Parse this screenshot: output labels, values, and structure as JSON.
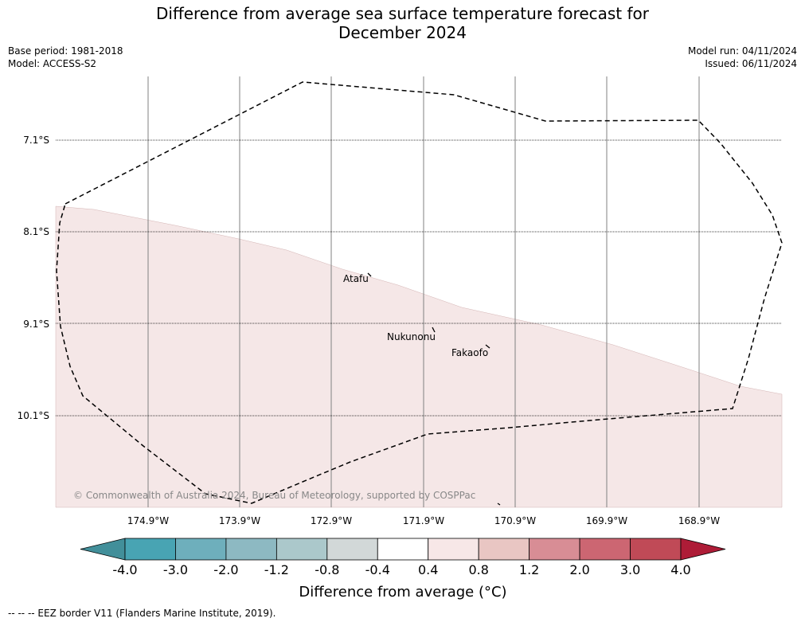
{
  "title": {
    "line1": "Difference from average sea surface temperature forecast for",
    "line2": "December 2024"
  },
  "meta_left": {
    "base_period": "Base period: 1981-2018",
    "model": "Model: ACCESS-S2"
  },
  "meta_right": {
    "model_run": "Model run: 04/11/2024",
    "issued": "Issued: 06/11/2024"
  },
  "map": {
    "lat_labels": [
      "7.1°S",
      "8.1°S",
      "9.1°S",
      "10.1°S"
    ],
    "lon_labels": [
      "174.9°W",
      "173.9°W",
      "172.9°W",
      "171.9°W",
      "170.9°W",
      "169.9°W",
      "168.9°W"
    ],
    "islands": [
      "Atafu",
      "Nukunonu",
      "Fakaofo"
    ],
    "copyright": "© Commonwealth of Australia 2024, Bureau of Meteorology, supported by COSPPac",
    "anomaly_fill_color": "#f5e7e7",
    "eez_border_style": "dashed"
  },
  "colorbar": {
    "ticks": [
      "-4.0",
      "-3.0",
      "-2.0",
      "-1.2",
      "-0.8",
      "-0.4",
      "0.4",
      "0.8",
      "1.2",
      "2.0",
      "3.0",
      "4.0"
    ],
    "colors": [
      "#428f9a",
      "#48a4b3",
      "#6eafbc",
      "#8db9c2",
      "#abc8cb",
      "#d2d8d8",
      "#ffffff",
      "#f7e7e7",
      "#e9c6c3",
      "#d88d95",
      "#cc6672",
      "#c04a57",
      "#ae1c37"
    ],
    "label": "Difference from average (°C)"
  },
  "footer": {
    "legend": "--  --  -- EEZ border V11 (Flanders Marine Institute, 2019)."
  }
}
